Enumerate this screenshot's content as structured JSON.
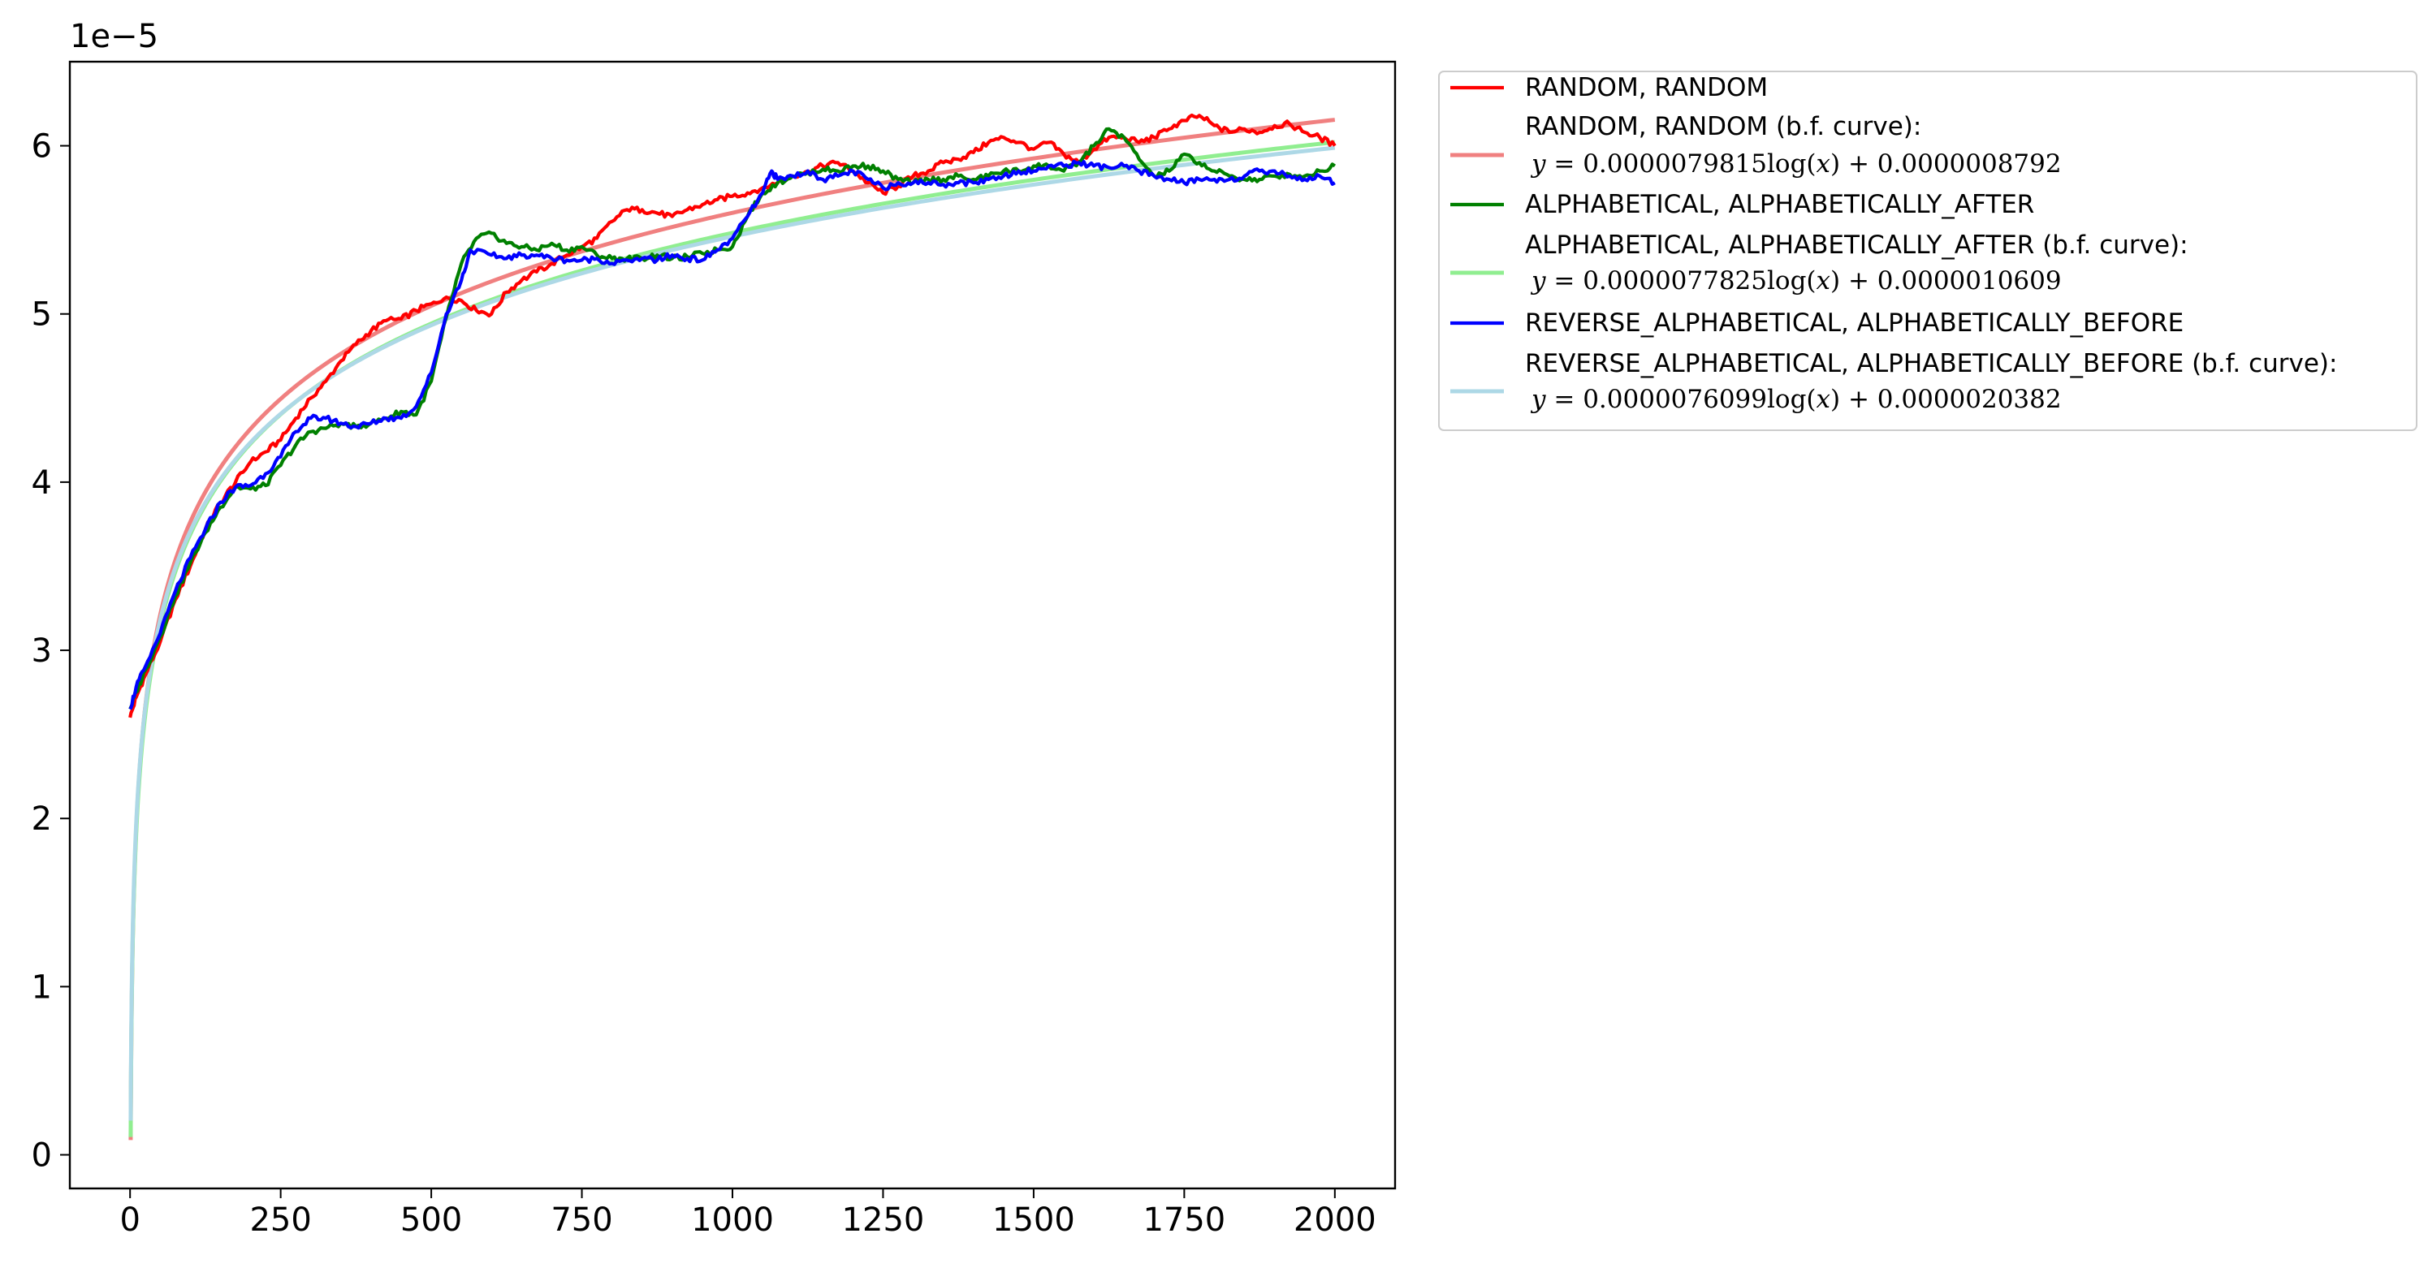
{
  "chart_data": {
    "type": "line",
    "title": "",
    "xlabel": "",
    "ylabel": "",
    "y_offset_label": "1e−5",
    "xlim": [
      -100,
      2100
    ],
    "ylim": [
      -0.2,
      6.5
    ],
    "y_scale_multiplier": 1e-05,
    "x_ticks": [
      0,
      250,
      500,
      750,
      1000,
      1250,
      1500,
      1750,
      2000
    ],
    "x_tick_labels": [
      "0",
      "250",
      "500",
      "750",
      "1000",
      "1250",
      "1500",
      "1750",
      "2000"
    ],
    "y_ticks": [
      0,
      1,
      2,
      3,
      4,
      5,
      6
    ],
    "y_tick_labels": [
      "0",
      "1",
      "2",
      "3",
      "4",
      "5",
      "6"
    ],
    "grid": false,
    "legend_position": "outside-upper-right",
    "series": [
      {
        "name": "RANDOM, RANDOM",
        "kind": "data",
        "color": "#ff0000",
        "points": [
          [
            0,
            2.6
          ],
          [
            10,
            2.72
          ],
          [
            25,
            2.85
          ],
          [
            50,
            3.05
          ],
          [
            75,
            3.3
          ],
          [
            100,
            3.5
          ],
          [
            125,
            3.72
          ],
          [
            150,
            3.88
          ],
          [
            175,
            4.0
          ],
          [
            200,
            4.12
          ],
          [
            225,
            4.18
          ],
          [
            250,
            4.25
          ],
          [
            275,
            4.38
          ],
          [
            300,
            4.5
          ],
          [
            325,
            4.6
          ],
          [
            350,
            4.72
          ],
          [
            375,
            4.82
          ],
          [
            400,
            4.9
          ],
          [
            425,
            4.96
          ],
          [
            450,
            4.97
          ],
          [
            475,
            5.02
          ],
          [
            500,
            5.06
          ],
          [
            525,
            5.1
          ],
          [
            550,
            5.08
          ],
          [
            575,
            5.02
          ],
          [
            600,
            5.0
          ],
          [
            625,
            5.13
          ],
          [
            650,
            5.2
          ],
          [
            675,
            5.25
          ],
          [
            700,
            5.3
          ],
          [
            725,
            5.35
          ],
          [
            750,
            5.4
          ],
          [
            775,
            5.45
          ],
          [
            800,
            5.55
          ],
          [
            825,
            5.62
          ],
          [
            850,
            5.62
          ],
          [
            875,
            5.6
          ],
          [
            900,
            5.58
          ],
          [
            925,
            5.62
          ],
          [
            950,
            5.65
          ],
          [
            975,
            5.68
          ],
          [
            1000,
            5.7
          ],
          [
            1025,
            5.72
          ],
          [
            1050,
            5.75
          ],
          [
            1075,
            5.78
          ],
          [
            1100,
            5.82
          ],
          [
            1125,
            5.85
          ],
          [
            1150,
            5.88
          ],
          [
            1175,
            5.9
          ],
          [
            1200,
            5.85
          ],
          [
            1225,
            5.78
          ],
          [
            1250,
            5.72
          ],
          [
            1275,
            5.76
          ],
          [
            1300,
            5.82
          ],
          [
            1325,
            5.85
          ],
          [
            1350,
            5.9
          ],
          [
            1375,
            5.92
          ],
          [
            1400,
            5.96
          ],
          [
            1425,
            6.02
          ],
          [
            1450,
            6.05
          ],
          [
            1475,
            6.02
          ],
          [
            1500,
            5.98
          ],
          [
            1525,
            6.02
          ],
          [
            1550,
            5.95
          ],
          [
            1575,
            5.9
          ],
          [
            1600,
            5.98
          ],
          [
            1625,
            6.05
          ],
          [
            1650,
            6.05
          ],
          [
            1675,
            6.02
          ],
          [
            1700,
            6.05
          ],
          [
            1725,
            6.1
          ],
          [
            1750,
            6.15
          ],
          [
            1775,
            6.18
          ],
          [
            1800,
            6.12
          ],
          [
            1825,
            6.08
          ],
          [
            1850,
            6.1
          ],
          [
            1875,
            6.08
          ],
          [
            1900,
            6.12
          ],
          [
            1925,
            6.13
          ],
          [
            1950,
            6.08
          ],
          [
            1975,
            6.05
          ],
          [
            2000,
            6.0
          ]
        ]
      },
      {
        "name": "RANDOM, RANDOM (b.f. curve):",
        "equation": "y = 0.0000079815log(x) + 0.0000008792",
        "kind": "fit",
        "color": "#f08080",
        "a": 7.9815e-06,
        "b": 8.792e-07,
        "x_range": [
          1,
          2000
        ]
      },
      {
        "name": "ALPHABETICAL, ALPHABETICALLY_AFTER",
        "kind": "data",
        "color": "#008000",
        "points": [
          [
            0,
            2.65
          ],
          [
            10,
            2.75
          ],
          [
            25,
            2.88
          ],
          [
            50,
            3.08
          ],
          [
            75,
            3.32
          ],
          [
            100,
            3.52
          ],
          [
            125,
            3.7
          ],
          [
            150,
            3.85
          ],
          [
            175,
            3.97
          ],
          [
            200,
            3.96
          ],
          [
            225,
            3.98
          ],
          [
            250,
            4.1
          ],
          [
            275,
            4.22
          ],
          [
            300,
            4.3
          ],
          [
            325,
            4.32
          ],
          [
            350,
            4.35
          ],
          [
            375,
            4.33
          ],
          [
            400,
            4.35
          ],
          [
            425,
            4.38
          ],
          [
            450,
            4.42
          ],
          [
            475,
            4.4
          ],
          [
            500,
            4.6
          ],
          [
            525,
            4.98
          ],
          [
            550,
            5.3
          ],
          [
            575,
            5.45
          ],
          [
            600,
            5.48
          ],
          [
            625,
            5.42
          ],
          [
            650,
            5.4
          ],
          [
            675,
            5.38
          ],
          [
            700,
            5.42
          ],
          [
            725,
            5.38
          ],
          [
            750,
            5.4
          ],
          [
            775,
            5.35
          ],
          [
            800,
            5.33
          ],
          [
            825,
            5.33
          ],
          [
            850,
            5.33
          ],
          [
            875,
            5.35
          ],
          [
            900,
            5.33
          ],
          [
            925,
            5.34
          ],
          [
            950,
            5.36
          ],
          [
            975,
            5.38
          ],
          [
            1000,
            5.4
          ],
          [
            1025,
            5.58
          ],
          [
            1050,
            5.72
          ],
          [
            1075,
            5.78
          ],
          [
            1100,
            5.82
          ],
          [
            1125,
            5.84
          ],
          [
            1150,
            5.86
          ],
          [
            1175,
            5.85
          ],
          [
            1200,
            5.88
          ],
          [
            1225,
            5.88
          ],
          [
            1250,
            5.85
          ],
          [
            1275,
            5.8
          ],
          [
            1300,
            5.78
          ],
          [
            1325,
            5.8
          ],
          [
            1350,
            5.8
          ],
          [
            1375,
            5.82
          ],
          [
            1400,
            5.8
          ],
          [
            1425,
            5.82
          ],
          [
            1450,
            5.85
          ],
          [
            1475,
            5.85
          ],
          [
            1500,
            5.88
          ],
          [
            1525,
            5.88
          ],
          [
            1550,
            5.85
          ],
          [
            1575,
            5.9
          ],
          [
            1600,
            6.0
          ],
          [
            1625,
            6.1
          ],
          [
            1650,
            6.05
          ],
          [
            1675,
            5.92
          ],
          [
            1700,
            5.82
          ],
          [
            1725,
            5.85
          ],
          [
            1750,
            5.95
          ],
          [
            1775,
            5.9
          ],
          [
            1800,
            5.85
          ],
          [
            1825,
            5.82
          ],
          [
            1850,
            5.8
          ],
          [
            1875,
            5.8
          ],
          [
            1900,
            5.82
          ],
          [
            1925,
            5.83
          ],
          [
            1950,
            5.82
          ],
          [
            1975,
            5.85
          ],
          [
            2000,
            5.88
          ]
        ]
      },
      {
        "name": "ALPHABETICAL, ALPHABETICALLY_AFTER (b.f. curve):",
        "equation": "y = 0.0000077825log(x) + 0.0000010609",
        "kind": "fit",
        "color": "#90ee90",
        "a": 7.7825e-06,
        "b": 1.0609e-06,
        "x_range": [
          1,
          2000
        ]
      },
      {
        "name": "REVERSE_ALPHABETICAL, ALPHABETICALLY_BEFORE",
        "kind": "data",
        "color": "#0000ff",
        "points": [
          [
            0,
            2.65
          ],
          [
            10,
            2.78
          ],
          [
            25,
            2.9
          ],
          [
            50,
            3.1
          ],
          [
            75,
            3.35
          ],
          [
            100,
            3.55
          ],
          [
            125,
            3.72
          ],
          [
            150,
            3.88
          ],
          [
            175,
            3.97
          ],
          [
            200,
            3.98
          ],
          [
            225,
            4.05
          ],
          [
            250,
            4.15
          ],
          [
            275,
            4.3
          ],
          [
            300,
            4.38
          ],
          [
            325,
            4.38
          ],
          [
            350,
            4.35
          ],
          [
            375,
            4.33
          ],
          [
            400,
            4.35
          ],
          [
            425,
            4.38
          ],
          [
            450,
            4.38
          ],
          [
            475,
            4.45
          ],
          [
            500,
            4.65
          ],
          [
            525,
            5.0
          ],
          [
            550,
            5.2
          ],
          [
            565,
            5.38
          ],
          [
            600,
            5.35
          ],
          [
            625,
            5.33
          ],
          [
            650,
            5.35
          ],
          [
            675,
            5.35
          ],
          [
            700,
            5.33
          ],
          [
            725,
            5.32
          ],
          [
            750,
            5.32
          ],
          [
            775,
            5.33
          ],
          [
            800,
            5.3
          ],
          [
            825,
            5.32
          ],
          [
            850,
            5.33
          ],
          [
            875,
            5.32
          ],
          [
            900,
            5.35
          ],
          [
            925,
            5.33
          ],
          [
            950,
            5.32
          ],
          [
            975,
            5.38
          ],
          [
            1000,
            5.45
          ],
          [
            1025,
            5.58
          ],
          [
            1050,
            5.72
          ],
          [
            1065,
            5.85
          ],
          [
            1075,
            5.8
          ],
          [
            1100,
            5.82
          ],
          [
            1125,
            5.85
          ],
          [
            1150,
            5.8
          ],
          [
            1175,
            5.82
          ],
          [
            1200,
            5.85
          ],
          [
            1225,
            5.8
          ],
          [
            1250,
            5.75
          ],
          [
            1275,
            5.78
          ],
          [
            1300,
            5.78
          ],
          [
            1325,
            5.78
          ],
          [
            1350,
            5.77
          ],
          [
            1375,
            5.78
          ],
          [
            1400,
            5.78
          ],
          [
            1425,
            5.8
          ],
          [
            1450,
            5.82
          ],
          [
            1475,
            5.85
          ],
          [
            1500,
            5.85
          ],
          [
            1525,
            5.88
          ],
          [
            1550,
            5.88
          ],
          [
            1575,
            5.9
          ],
          [
            1600,
            5.88
          ],
          [
            1625,
            5.87
          ],
          [
            1650,
            5.88
          ],
          [
            1675,
            5.85
          ],
          [
            1700,
            5.82
          ],
          [
            1725,
            5.8
          ],
          [
            1750,
            5.78
          ],
          [
            1775,
            5.8
          ],
          [
            1800,
            5.8
          ],
          [
            1825,
            5.8
          ],
          [
            1850,
            5.82
          ],
          [
            1875,
            5.85
          ],
          [
            1900,
            5.85
          ],
          [
            1925,
            5.82
          ],
          [
            1950,
            5.8
          ],
          [
            1975,
            5.82
          ],
          [
            2000,
            5.78
          ]
        ]
      },
      {
        "name": "REVERSE_ALPHABETICAL, ALPHABETICALLY_BEFORE (b.f. curve):",
        "equation": "y = 0.0000076099log(x) + 0.0000020382",
        "kind": "fit",
        "color": "#add8e6",
        "a": 7.6099e-06,
        "b": 2.0382e-06,
        "x_range": [
          1,
          2000
        ]
      }
    ]
  }
}
